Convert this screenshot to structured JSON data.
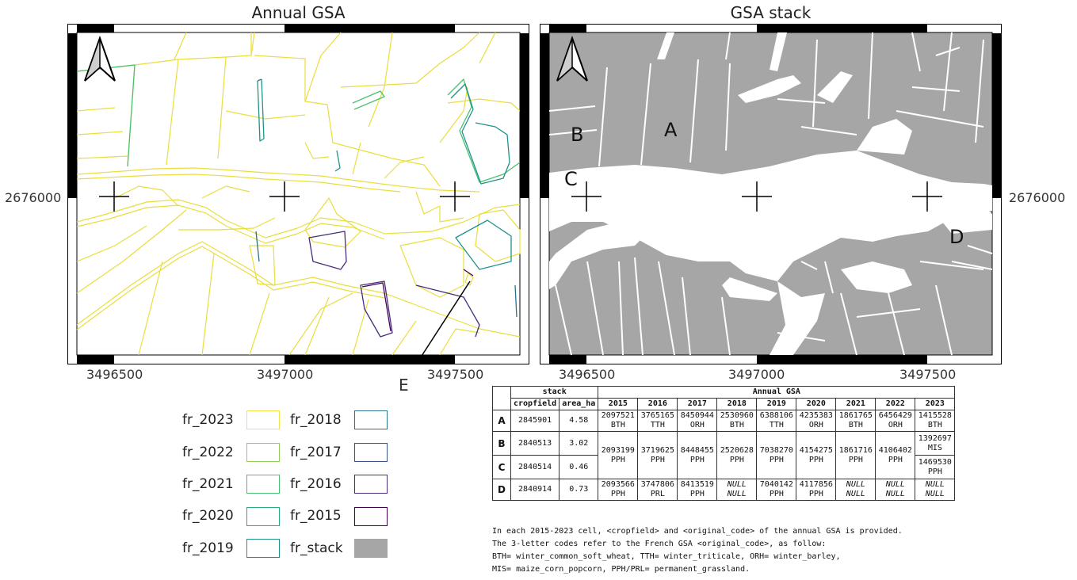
{
  "left_map": {
    "title": "Annual GSA",
    "y_label": "2676000",
    "x_labels": [
      "3496500",
      "3497000",
      "3497500"
    ],
    "callout_label": "E"
  },
  "right_map": {
    "title": "GSA stack",
    "y_label": "2676000",
    "x_labels": [
      "3496500",
      "3497000",
      "3497500"
    ],
    "field_labels": [
      "A",
      "B",
      "C",
      "D"
    ]
  },
  "legend": [
    {
      "name": "fr_2023",
      "color": "#f1e54a"
    },
    {
      "name": "fr_2022",
      "color": "#8fcf5a"
    },
    {
      "name": "fr_2021",
      "color": "#47c16e"
    },
    {
      "name": "fr_2020",
      "color": "#27ad81"
    },
    {
      "name": "fr_2019",
      "color": "#21918c"
    },
    {
      "name": "fr_2018",
      "color": "#2c728e"
    },
    {
      "name": "fr_2017",
      "color": "#3b528b"
    },
    {
      "name": "fr_2016",
      "color": "#472d7b"
    },
    {
      "name": "fr_2015",
      "color": "#440154"
    },
    {
      "name": "fr_stack",
      "color": "#a6a6a6"
    }
  ],
  "table": {
    "group_stack": "stack",
    "group_annual": "Annual GSA",
    "col_cropfield": "cropfield",
    "col_area": "area_ha",
    "years": [
      "2015",
      "2016",
      "2017",
      "2018",
      "2019",
      "2020",
      "2021",
      "2022",
      "2023"
    ],
    "rows": {
      "A": {
        "id": "A",
        "cropfield": "2845901",
        "area": "4.58",
        "cells": [
          [
            "2097521",
            "BTH"
          ],
          [
            "3765165",
            "TTH"
          ],
          [
            "8450944",
            "ORH"
          ],
          [
            "2530960",
            "BTH"
          ],
          [
            "6388106",
            "TTH"
          ],
          [
            "4235383",
            "ORH"
          ],
          [
            "1861765",
            "BTH"
          ],
          [
            "6456429",
            "ORH"
          ],
          [
            "1415528",
            "BTH"
          ]
        ]
      },
      "B": {
        "id": "B",
        "cropfield": "2840513",
        "area": "3.02",
        "last": [
          "1392697",
          "MIS"
        ]
      },
      "C": {
        "id": "C",
        "cropfield": "2840514",
        "area": "0.46",
        "last": [
          "1469530",
          "PPH"
        ]
      },
      "BC_shared": [
        [
          "2093199",
          "PPH"
        ],
        [
          "3719625",
          "PPH"
        ],
        [
          "8448455",
          "PPH"
        ],
        [
          "2520628",
          "PPH"
        ],
        [
          "7038270",
          "PPH"
        ],
        [
          "4154275",
          "PPH"
        ],
        [
          "1861716",
          "PPH"
        ],
        [
          "4106402",
          "PPH"
        ]
      ],
      "D": {
        "id": "D",
        "cropfield": "2840914",
        "area": "0.73",
        "cells": [
          [
            "2093566",
            "PPH"
          ],
          [
            "3747806",
            "PRL"
          ],
          [
            "8413519",
            "PPH"
          ],
          [
            "NULL",
            "NULL"
          ],
          [
            "7040142",
            "PPH"
          ],
          [
            "4117856",
            "PPH"
          ],
          [
            "NULL",
            "NULL"
          ],
          [
            "NULL",
            "NULL"
          ],
          [
            "NULL",
            "NULL"
          ]
        ]
      }
    }
  },
  "notes": [
    "In each 2015-2023 cell, <cropfield> and <original_code> of the annual GSA is provided.",
    "The 3-letter codes refer to the French GSA <original_code>, as follow:",
    "BTH= winter_common_soft_wheat, TTH= winter_triticale, ORH= winter_barley,",
    "MIS= maize_corn_popcorn, PPH/PRL= permanent_grassland."
  ]
}
